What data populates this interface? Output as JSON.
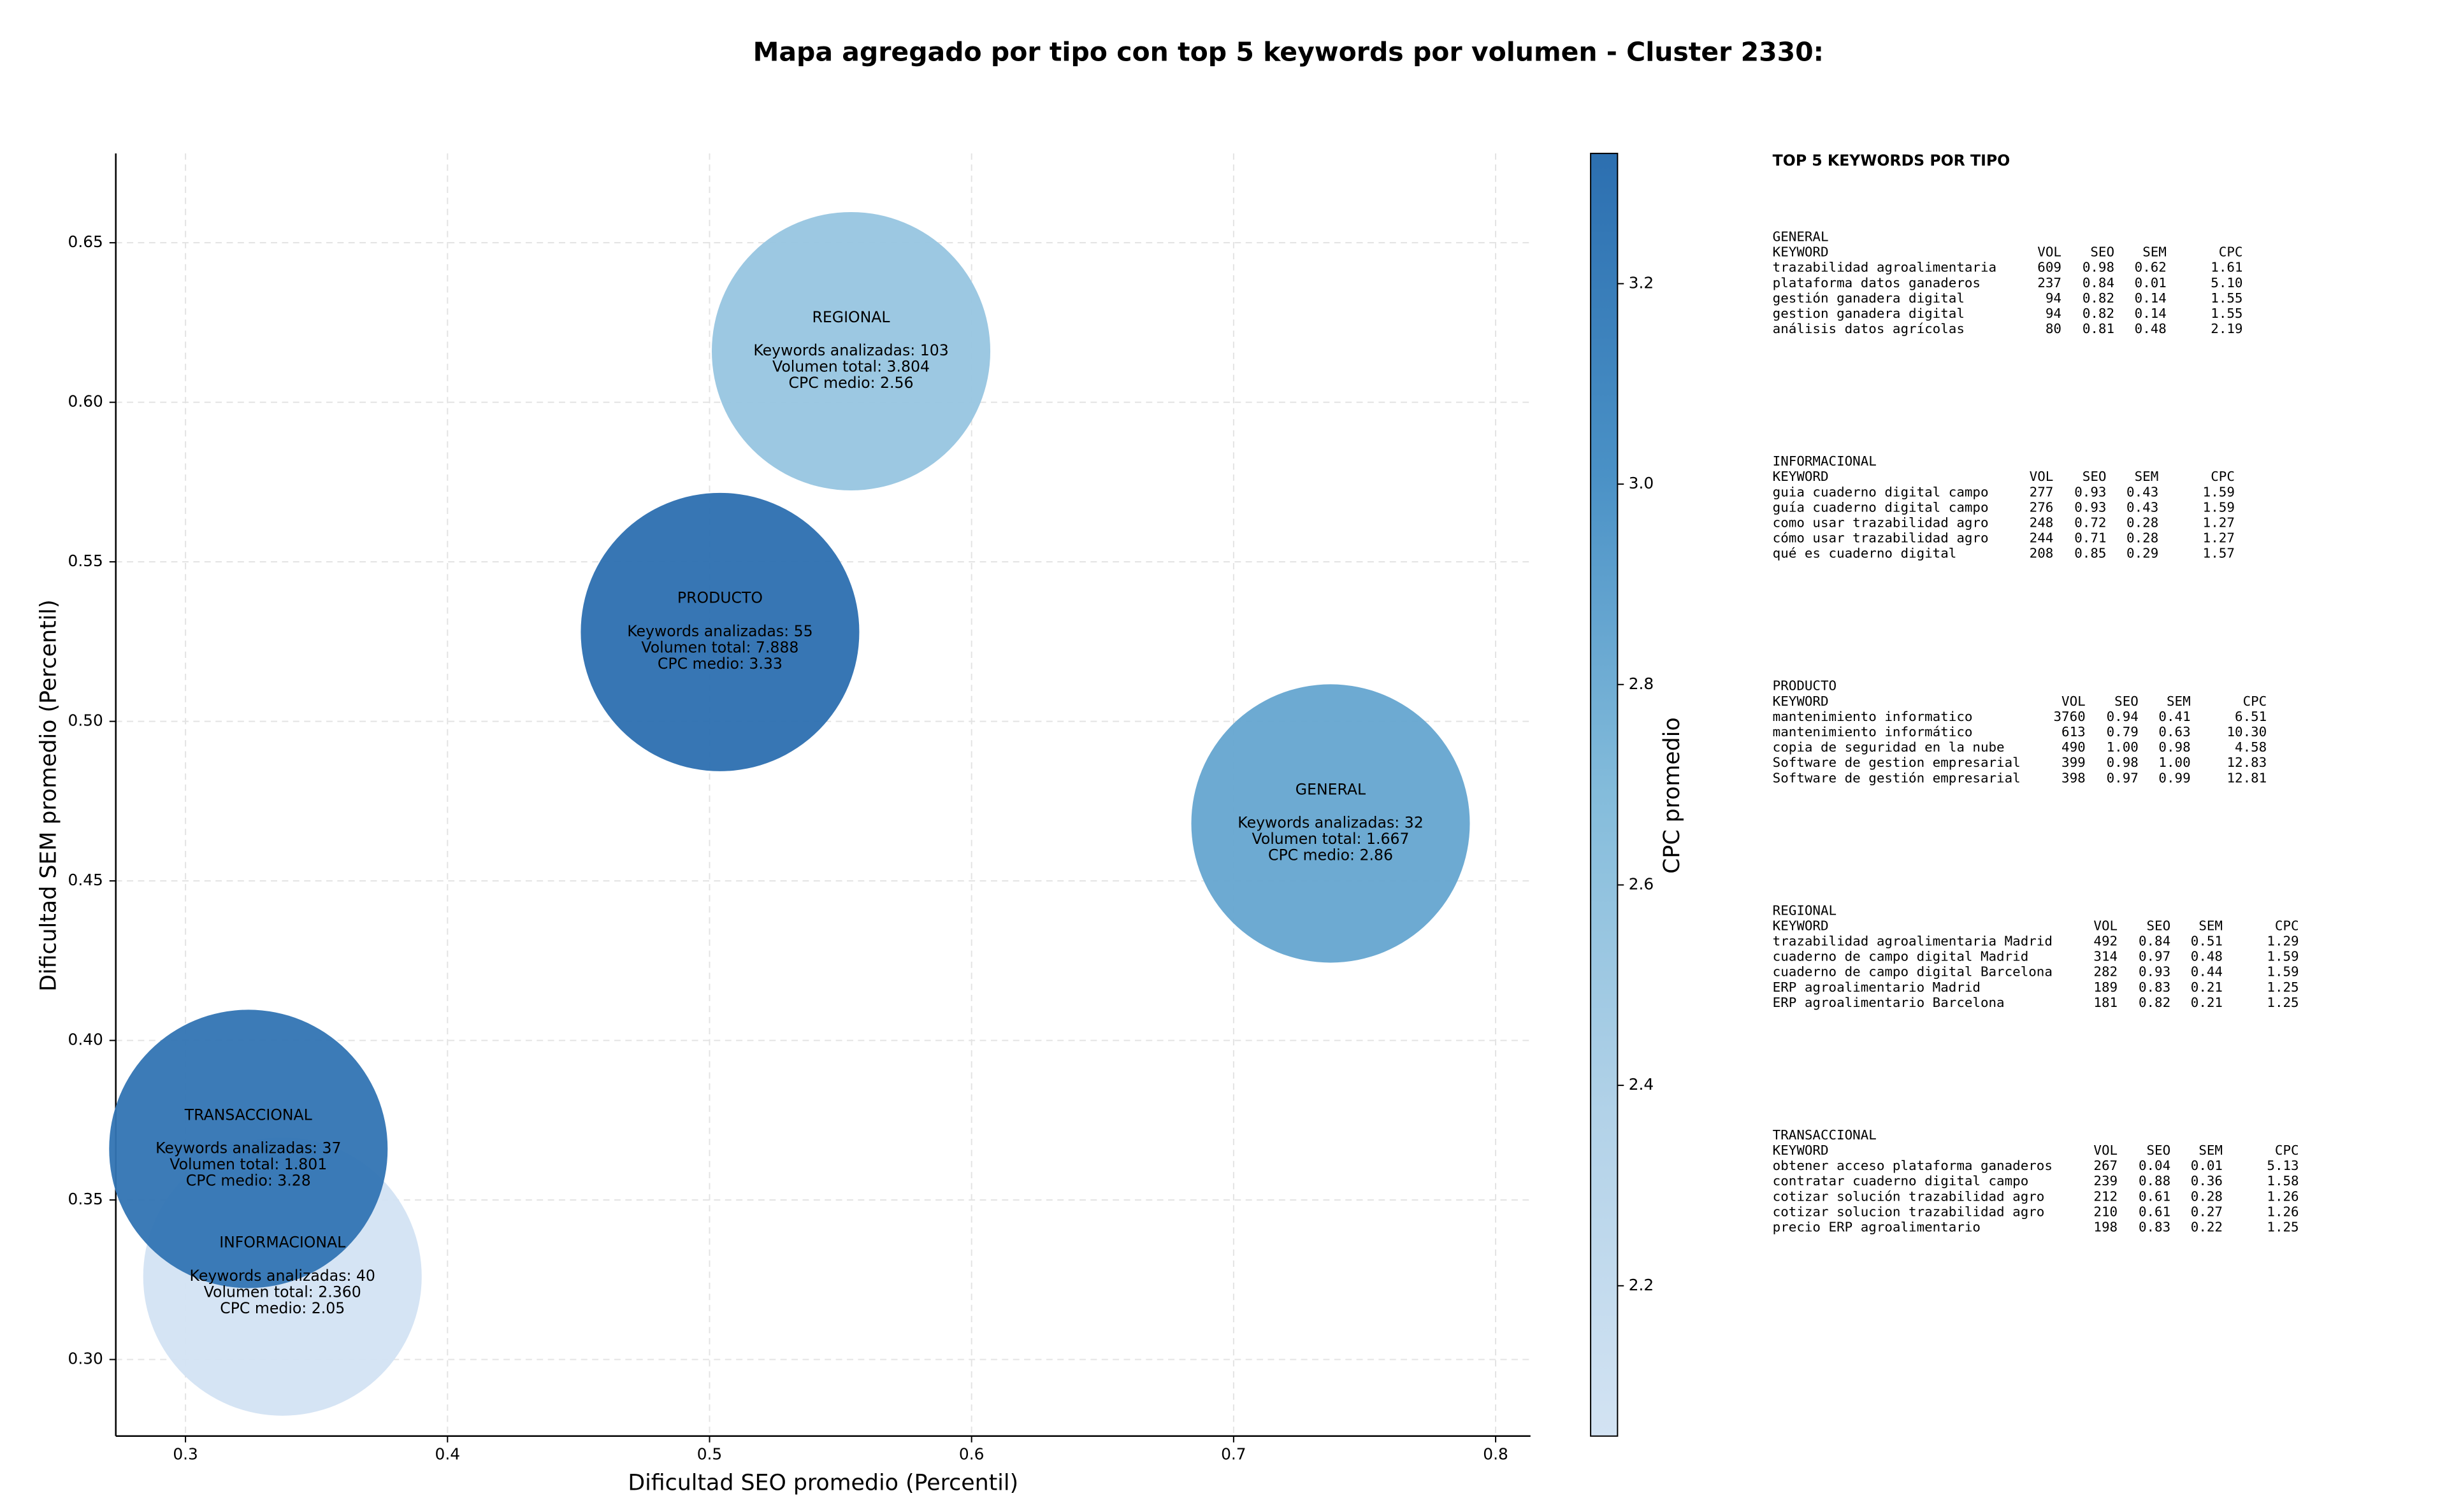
{
  "chart_data": {
    "type": "bubble",
    "title": "Mapa agregado por tipo con top 5 keywords por volumen - Cluster 2330:",
    "x_label": "Dificultad SEO promedio (Percentil)",
    "y_label": "Dificultad SEM promedio (Percentil)",
    "colorbar_label": "CPC promedio",
    "categories": [
      "GENERAL",
      "INFORMACIONAL",
      "PRODUCTO",
      "REGIONAL",
      "TRANSACCIONAL"
    ],
    "x": [
      0.737,
      0.337,
      0.504,
      0.554,
      0.324
    ],
    "values": [
      0.468,
      0.326,
      0.528,
      0.616,
      0.366
    ],
    "color_values": [
      2.86,
      2.05,
      3.33,
      2.56,
      3.28
    ],
    "annotations": [
      [
        "Keywords analizadas: 32",
        "Volumen total: 1.667",
        "CPC medio: 2.86"
      ],
      [
        "Keywords analizadas: 40",
        "Volumen total: 2.360",
        "CPC medio: 2.05"
      ],
      [
        "Keywords analizadas: 55",
        "Volumen total: 7.888",
        "CPC medio: 3.33"
      ],
      [
        "Keywords analizadas: 103",
        "Volumen total: 3.804",
        "CPC medio: 2.56"
      ],
      [
        "Keywords analizadas: 37",
        "Volumen total: 1.801",
        "CPC medio: 3.28"
      ]
    ],
    "xlim": [
      0.2734,
      0.8133
    ],
    "xticks": [
      0.3,
      0.4,
      0.5,
      0.6,
      0.7,
      0.8
    ],
    "ylim": [
      0.276,
      0.678
    ],
    "yticks": [
      {
        "value": 0.3,
        "label": "0.30"
      },
      {
        "value": 0.35,
        "label": "0.35"
      },
      {
        "value": 0.4,
        "label": "0.40"
      },
      {
        "value": 0.45,
        "label": "0.45"
      },
      {
        "value": 0.5,
        "label": "0.50"
      },
      {
        "value": 0.55,
        "label": "0.55"
      },
      {
        "value": 0.6,
        "label": "0.60"
      },
      {
        "value": 0.65,
        "label": "0.65"
      }
    ],
    "clim": [
      2.05,
      3.33
    ],
    "cticks": [
      2.2,
      2.4,
      2.6,
      2.8,
      {
        "value": 3,
        "label": "3.0"
      },
      3.2
    ],
    "colormap": [
      "#d3e3f3",
      "#b2d2e8",
      "#84bcdb",
      "#4a91c6",
      "#2c6fb0"
    ],
    "grid": true
  },
  "keyword_panel": {
    "title": "TOP 5 KEYWORDS POR TIPO",
    "groups": [
      {
        "name": "GENERAL",
        "header": [
          "KEYWORD",
          "VOL",
          "SEO",
          "SEM",
          "CPC"
        ],
        "rows": [
          [
            "trazabilidad agroalimentaria",
            "609",
            "0.98",
            "0.62",
            "1.61"
          ],
          [
            "plataforma datos ganaderos",
            "237",
            "0.84",
            "0.01",
            "5.10"
          ],
          [
            "gestión ganadera digital",
            "94",
            "0.82",
            "0.14",
            "1.55"
          ],
          [
            "gestion ganadera digital",
            "94",
            "0.82",
            "0.14",
            "1.55"
          ],
          [
            "análisis datos agrícolas",
            "80",
            "0.81",
            "0.48",
            "2.19"
          ]
        ]
      },
      {
        "name": "INFORMACIONAL",
        "header": [
          "KEYWORD",
          "VOL",
          "SEO",
          "SEM",
          "CPC"
        ],
        "rows": [
          [
            "guia cuaderno digital campo",
            "277",
            "0.93",
            "0.43",
            "1.59"
          ],
          [
            "guía cuaderno digital campo",
            "276",
            "0.93",
            "0.43",
            "1.59"
          ],
          [
            "como usar trazabilidad agro",
            "248",
            "0.72",
            "0.28",
            "1.27"
          ],
          [
            "cómo usar trazabilidad agro",
            "244",
            "0.71",
            "0.28",
            "1.27"
          ],
          [
            "qué es cuaderno digital",
            "208",
            "0.85",
            "0.29",
            "1.57"
          ]
        ]
      },
      {
        "name": "PRODUCTO",
        "header": [
          "KEYWORD",
          "VOL",
          "SEO",
          "SEM",
          "CPC"
        ],
        "rows": [
          [
            "mantenimiento informatico",
            "3760",
            "0.94",
            "0.41",
            "6.51"
          ],
          [
            "mantenimiento informático",
            "613",
            "0.79",
            "0.63",
            "10.30"
          ],
          [
            "copia de seguridad en la nube",
            "490",
            "1.00",
            "0.98",
            "4.58"
          ],
          [
            "Software de gestion empresarial",
            "399",
            "0.98",
            "1.00",
            "12.83"
          ],
          [
            "Software de gestión empresarial",
            "398",
            "0.97",
            "0.99",
            "12.81"
          ]
        ]
      },
      {
        "name": "REGIONAL",
        "header": [
          "KEYWORD",
          "VOL",
          "SEO",
          "SEM",
          "CPC"
        ],
        "rows": [
          [
            "trazabilidad agroalimentaria Madrid",
            "492",
            "0.84",
            "0.51",
            "1.29"
          ],
          [
            "cuaderno de campo digital Madrid",
            "314",
            "0.97",
            "0.48",
            "1.59"
          ],
          [
            "cuaderno de campo digital Barcelona",
            "282",
            "0.93",
            "0.44",
            "1.59"
          ],
          [
            "ERP agroalimentario Madrid",
            "189",
            "0.83",
            "0.21",
            "1.25"
          ],
          [
            "ERP agroalimentario Barcelona",
            "181",
            "0.82",
            "0.21",
            "1.25"
          ]
        ]
      },
      {
        "name": "TRANSACCIONAL",
        "header": [
          "KEYWORD",
          "VOL",
          "SEO",
          "SEM",
          "CPC"
        ],
        "rows": [
          [
            "obtener acceso plataforma ganaderos",
            "267",
            "0.04",
            "0.01",
            "5.13"
          ],
          [
            "contratar cuaderno digital campo",
            "239",
            "0.88",
            "0.36",
            "1.58"
          ],
          [
            "cotizar solución trazabilidad agro",
            "212",
            "0.61",
            "0.28",
            "1.26"
          ],
          [
            "cotizar solucion trazabilidad agro",
            "210",
            "0.61",
            "0.27",
            "1.26"
          ],
          [
            "precio ERP agroalimentario",
            "198",
            "0.83",
            "0.22",
            "1.25"
          ]
        ]
      }
    ]
  }
}
